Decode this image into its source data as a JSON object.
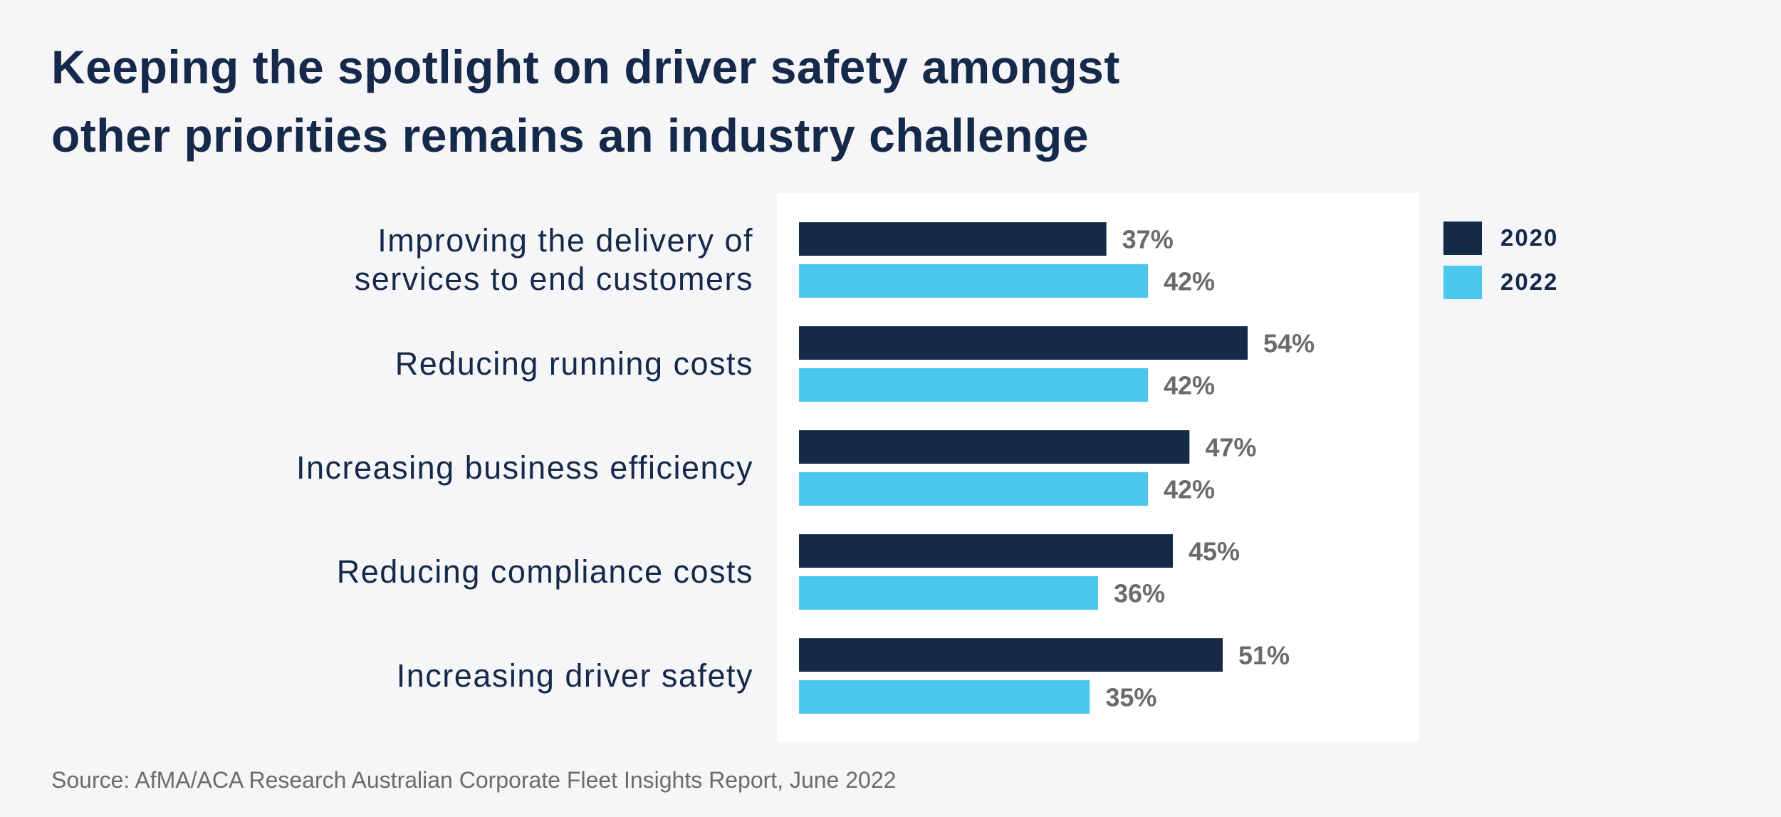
{
  "title_lines": [
    "Keeping the spotlight on driver safety amongst",
    "other priorities remains an industry challenge"
  ],
  "source": "Source: AfMA/ACA Research Australian Corporate Fleet Insights Report, June 2022",
  "colors": {
    "s2020": "#142a47",
    "s2022": "#4ac8ee",
    "background": "#f6f6f8",
    "panel": "#ffffff"
  },
  "legend": [
    {
      "label": "2020",
      "color": "#142a47"
    },
    {
      "label": "2022",
      "color": "#4ac8ee"
    }
  ],
  "chart_data": {
    "type": "bar",
    "orientation": "horizontal",
    "title": "Keeping the spotlight on driver safety amongst other priorities remains an industry challenge",
    "categories": [
      [
        "Improving the delivery of",
        "services to end customers"
      ],
      [
        "Reducing running costs"
      ],
      [
        "Increasing business efficiency"
      ],
      [
        "Reducing compliance costs"
      ],
      [
        "Increasing driver safety"
      ]
    ],
    "series": [
      {
        "name": "2020",
        "values": [
          37,
          54,
          47,
          45,
          51
        ]
      },
      {
        "name": "2022",
        "values": [
          42,
          42,
          42,
          36,
          35
        ]
      }
    ],
    "value_suffix": "%",
    "xlim": [
      0,
      100
    ],
    "grid": false,
    "legend_position": "right"
  }
}
